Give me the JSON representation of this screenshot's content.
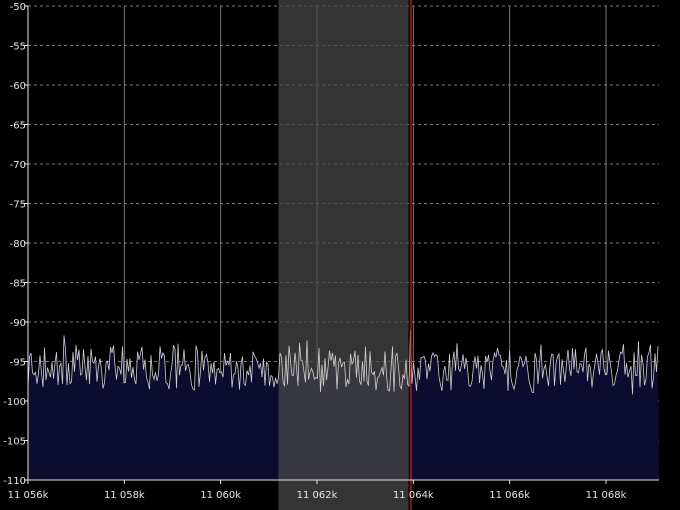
{
  "chart_data": {
    "type": "line",
    "title": "",
    "xlabel": "",
    "ylabel": "",
    "xlim": [
      11056000,
      11069100
    ],
    "ylim": [
      -110,
      -50
    ],
    "x_tick_labels": [
      "11 056k",
      "11 058k",
      "11 060k",
      "11 062k",
      "11 064k",
      "11 066k",
      "11 068k"
    ],
    "x_tick_values": [
      11056000,
      11058000,
      11060000,
      11062000,
      11064000,
      11066000,
      11068000
    ],
    "y_tick_labels": [
      "-50",
      "-55",
      "-60",
      "-65",
      "-70",
      "-75",
      "-80",
      "-85",
      "-90",
      "-95",
      "-100",
      "-105",
      "-110"
    ],
    "y_tick_values": [
      -50,
      -55,
      -60,
      -65,
      -70,
      -75,
      -80,
      -85,
      -90,
      -95,
      -100,
      -105,
      -110
    ],
    "grid": true,
    "noise_floor_db": -96,
    "noise_peak_db": -91,
    "noise_trough_db": -99.5,
    "filter_passband": [
      11061200,
      11063900
    ],
    "tuned_frequency": 11063950,
    "peak_at_tuned_db": -91,
    "colors": {
      "background": "#000000",
      "grid": "#7a7a7a",
      "trace": "#cfcfcf",
      "fill": "#0c0c2e",
      "passband": "#4a4a4a",
      "tuning_line": "#d02020",
      "text": "#e6e6e6"
    }
  }
}
